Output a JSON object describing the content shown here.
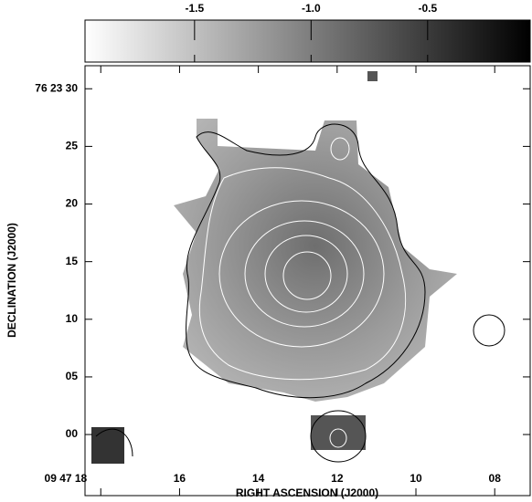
{
  "chart_data": {
    "type": "image",
    "xlabel": "RIGHT ASCENSION (J2000)",
    "ylabel": "DECLINATION (J2000)",
    "xlim": [
      18.4,
      7.1
    ],
    "xticks": [
      {
        "value": 18,
        "label": "09 47 18"
      },
      16,
      14,
      12,
      10,
      {
        "value": 8,
        "label": "08"
      }
    ],
    "ylim": [
      -5.3,
      32
    ],
    "yticks": [
      {
        "value": 30,
        "label": "76 23 30"
      },
      25,
      20,
      15,
      10,
      {
        "value": 5,
        "label": "05"
      },
      {
        "value": 0,
        "label": "00"
      }
    ],
    "colorbar": {
      "lim": [
        -1.97,
        -0.06
      ],
      "ticks": [
        -1.5,
        {
          "value": -1,
          "label": "-1.0"
        },
        -0.5
      ],
      "colors": [
        "#ffffff",
        "#000000"
      ]
    }
  }
}
